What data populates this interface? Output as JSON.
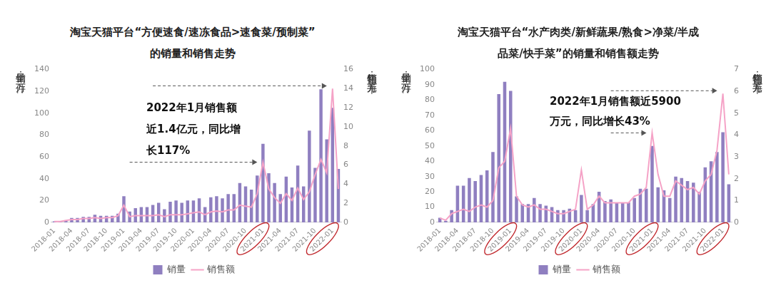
{
  "chart_data": [
    {
      "type": "bar",
      "title": [
        "淘宝天猫平台“方便速食/速冻食品>速食菜/预制菜”",
        "的销量和销售走势"
      ],
      "ylabel": "销量：万件",
      "y2label": "销售额：千万元",
      "annotation": [
        "2022年1月销售额",
        "近1.4亿元，同比增",
        "长117%"
      ],
      "categories": [
        "2018-01",
        null,
        null,
        "2018-04",
        null,
        null,
        "2018-07",
        null,
        null,
        "2018-10",
        null,
        null,
        "2019-01",
        null,
        null,
        "2019-04",
        null,
        null,
        "2019-07",
        null,
        null,
        "2019-10",
        null,
        null,
        "2020-01",
        null,
        null,
        "2020-04",
        null,
        null,
        "2020-07",
        null,
        null,
        "2020-10",
        null,
        null,
        "2021-01",
        null,
        null,
        "2021-04",
        null,
        null,
        "2021-07",
        null,
        null,
        "2021-10",
        null,
        null,
        "2022-01",
        null
      ],
      "series": [
        {
          "name": "销量",
          "type": "bar",
          "color": "#8f7fc0",
          "axis": "y",
          "values": [
            1,
            0.5,
            2,
            4,
            4,
            5,
            5,
            7,
            6,
            6,
            6,
            8,
            24,
            10,
            13,
            14,
            14,
            16,
            18,
            12,
            19,
            20,
            18,
            20,
            20,
            22,
            14,
            23,
            24,
            22,
            26,
            26,
            36,
            33,
            30,
            43,
            72,
            45,
            36,
            26,
            42,
            32,
            52,
            33,
            84,
            50,
            122,
            76,
            105,
            49
          ]
        },
        {
          "name": "销售额",
          "type": "line",
          "color": "#f5a3c7",
          "axis": "y2",
          "values": [
            0.1,
            0.1,
            0.2,
            0.3,
            0.3,
            0.4,
            0.4,
            0.5,
            0.4,
            0.5,
            0.5,
            0.7,
            1.8,
            0.6,
            0.7,
            0.7,
            0.7,
            0.7,
            0.8,
            0.6,
            0.8,
            0.8,
            0.8,
            0.9,
            1.0,
            1.1,
            0.8,
            1.1,
            1.2,
            1.1,
            1.3,
            1.3,
            1.8,
            1.7,
            1.6,
            3.0,
            6.3,
            3.5,
            2.6,
            2.0,
            3.0,
            2.3,
            3.6,
            2.4,
            3.2,
            5.0,
            6.6,
            5.2,
            14.0,
            3.5
          ]
        }
      ],
      "ylim": [
        0,
        140
      ],
      "yticks": [
        0,
        20,
        40,
        60,
        80,
        100,
        120,
        140
      ],
      "y2lim": [
        0,
        16
      ],
      "y2ticks": [
        0,
        2,
        4,
        6,
        8,
        10,
        12,
        14,
        16
      ],
      "grid": false,
      "legend": "bottom"
    },
    {
      "type": "bar",
      "title": [
        "淘宝天猫平台“水产肉类/新鲜蔬果/熟食>净菜/半成",
        "品菜/快手菜”的销量和销售额走势"
      ],
      "ylabel": "销量：万件",
      "y2label": "销售额：千万元",
      "annotation": [
        "2022年1月销售额近5900",
        "万元，同比增长43%"
      ],
      "categories": [
        "2018-01",
        null,
        null,
        "2018-04",
        null,
        null,
        "2018-07",
        null,
        null,
        "2018-10",
        null,
        null,
        "2019-01",
        null,
        null,
        "2019-04",
        null,
        null,
        "2019-07",
        null,
        null,
        "2019-10",
        null,
        null,
        "2020-01",
        null,
        null,
        "2020-04",
        null,
        null,
        "2020-07",
        null,
        null,
        "2020-10",
        null,
        null,
        "2021-01",
        null,
        null,
        "2021-04",
        null,
        null,
        "2021-07",
        null,
        null,
        "2021-10",
        null,
        null,
        "2022-01",
        null
      ],
      "series": [
        {
          "name": "销量",
          "type": "bar",
          "color": "#8f7fc0",
          "axis": "y",
          "values": [
            3,
            1,
            8,
            24,
            24,
            29,
            27,
            31,
            34,
            46,
            84,
            92,
            86,
            17,
            12,
            12,
            16,
            12,
            11,
            10,
            8,
            8,
            9,
            8,
            18,
            8,
            12,
            20,
            14,
            15,
            13,
            13,
            13,
            16,
            22,
            22,
            50,
            23,
            21,
            16,
            30,
            29,
            27,
            26,
            20,
            36,
            40,
            46,
            59,
            25
          ]
        },
        {
          "name": "销售额",
          "type": "line",
          "color": "#f5a3c7",
          "axis": "y2",
          "values": [
            0.2,
            0.1,
            0.4,
            0.5,
            0.6,
            0.5,
            0.7,
            0.8,
            0.7,
            1.0,
            2.5,
            2.8,
            4.3,
            1.2,
            0.8,
            0.7,
            0.8,
            0.6,
            0.6,
            0.5,
            0.4,
            0.4,
            0.5,
            0.6,
            2.4,
            0.6,
            0.8,
            1.2,
            0.9,
            0.9,
            0.9,
            0.9,
            0.9,
            1.2,
            1.3,
            1.6,
            4.1,
            2.2,
            1.2,
            1.2,
            1.9,
            1.7,
            1.5,
            1.6,
            1.3,
            1.9,
            2.2,
            3.3,
            5.9,
            2.2
          ]
        }
      ],
      "ylim": [
        0,
        100
      ],
      "yticks": [
        0,
        10,
        20,
        30,
        40,
        50,
        60,
        70,
        80,
        90,
        100
      ],
      "y2lim": [
        0,
        7
      ],
      "y2ticks": [
        0,
        1,
        2,
        3,
        4,
        5,
        6,
        7
      ],
      "grid": false,
      "legend": "bottom"
    }
  ]
}
